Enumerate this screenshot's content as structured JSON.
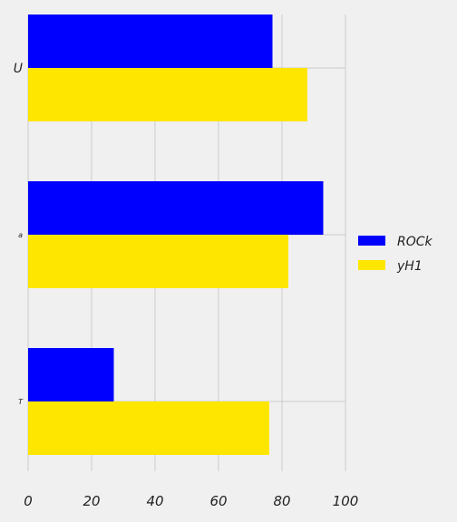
{
  "chart_data": {
    "type": "bar",
    "orientation": "horizontal",
    "categories": [
      "U",
      "a",
      "T"
    ],
    "series": [
      {
        "name": "ROCk",
        "color": "#0000ff",
        "values": [
          77,
          93,
          27
        ]
      },
      {
        "name": "yH1",
        "color": "#ffe600",
        "values": [
          88,
          82,
          76
        ]
      }
    ],
    "xlim": [
      0,
      100
    ],
    "xticks": [
      "0",
      "20",
      "40",
      "60",
      "80",
      "100"
    ],
    "grid": true,
    "legend_position": "right",
    "title": "",
    "xlabel": "",
    "ylabel": ""
  }
}
